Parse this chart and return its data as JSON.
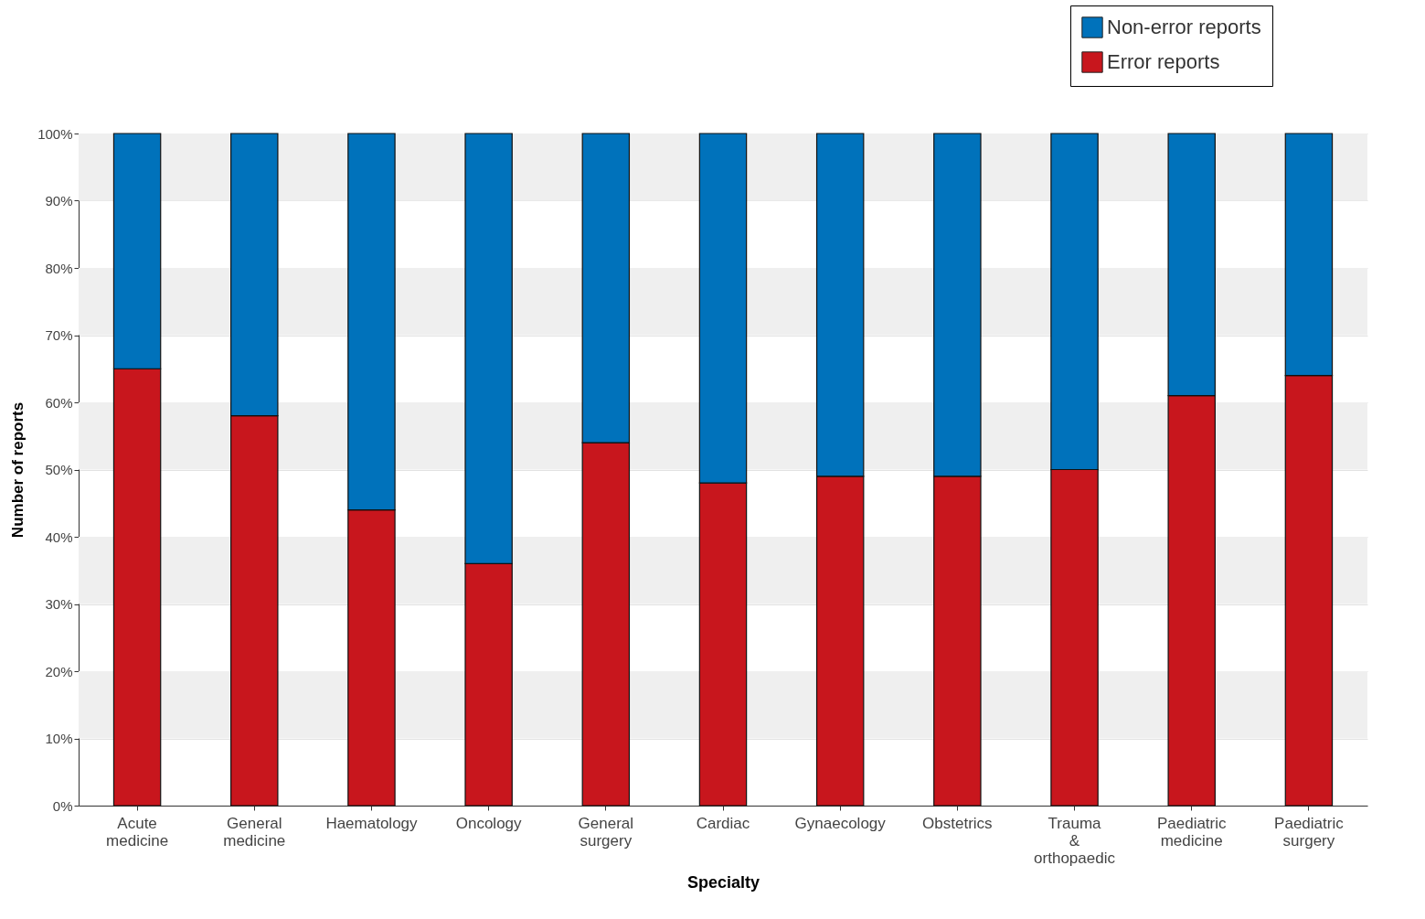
{
  "chart_data": {
    "type": "bar",
    "stacked": true,
    "xlabel": "Specialty",
    "ylabel": "Number of reports",
    "categories": [
      "Acute medicine",
      "General medicine",
      "Haematology",
      "Oncology",
      "General surgery",
      "Cardiac",
      "Gynaecology",
      "Obstetrics",
      "Trauma & orthopaedic",
      "Paediatric medicine",
      "Paediatric surgery"
    ],
    "series": [
      {
        "name": "Error reports",
        "color": "#c8161d",
        "values": [
          65,
          58,
          44,
          36,
          54,
          48,
          49,
          49,
          50,
          61,
          64
        ]
      },
      {
        "name": "Non-error reports",
        "color": "#0072bb",
        "values": [
          35,
          42,
          56,
          64,
          46,
          52,
          51,
          51,
          50,
          39,
          36
        ]
      }
    ],
    "ylim": [
      0,
      100
    ],
    "yticks": [
      {
        "value": 0,
        "label": "0%"
      },
      {
        "value": 10,
        "label": "10%"
      },
      {
        "value": 20,
        "label": "20%"
      },
      {
        "value": 30,
        "label": "30%"
      },
      {
        "value": 40,
        "label": "40%"
      },
      {
        "value": 50,
        "label": "50%"
      },
      {
        "value": 60,
        "label": "60%"
      },
      {
        "value": 70,
        "label": "70%"
      },
      {
        "value": 80,
        "label": "80%"
      },
      {
        "value": 90,
        "label": "90%"
      },
      {
        "value": 100,
        "label": "100%"
      }
    ],
    "grid": "y",
    "legend": "top right"
  }
}
